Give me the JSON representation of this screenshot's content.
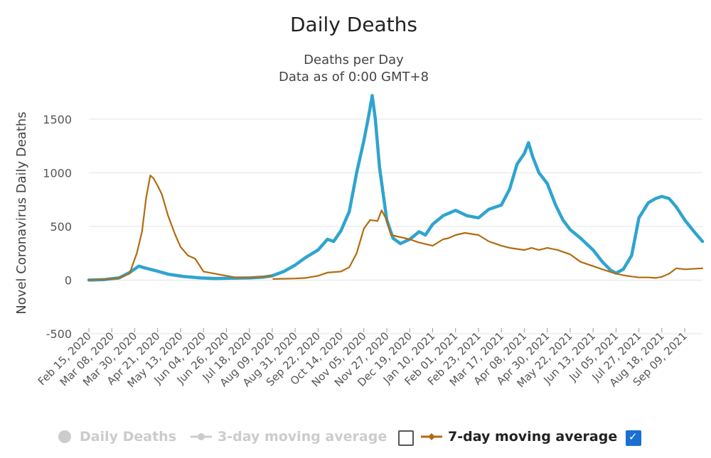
{
  "chart_data": {
    "type": "line",
    "title": "Daily Deaths",
    "subtitle_lines": [
      "Deaths per Day",
      "Data as of 0:00 GMT+8"
    ],
    "ylabel": "Novel Coronavirus Daily Deaths",
    "ylim": [
      -500,
      1750
    ],
    "yticks": [
      -500,
      0,
      500,
      1000,
      1500
    ],
    "xlim": [
      "2020-02-15",
      "2021-09-26"
    ],
    "x_tick_labels": [
      "Feb 15, 2020",
      "Mar 08, 2020",
      "Mar 30, 2020",
      "Apr 21, 2020",
      "May 13, 2020",
      "Jun 04, 2020",
      "Jun 26, 2020",
      "Jul 18, 2020",
      "Aug 09, 2020",
      "Aug 31, 2020",
      "Sep 22, 2020",
      "Oct 14, 2020",
      "Nov 05, 2020",
      "Nov 27, 2020",
      "Dec 19, 2020",
      "Jan 10, 2021",
      "Feb 01, 2021",
      "Feb 23, 2021",
      "Mar 17, 2021",
      "Apr 08, 2021",
      "Apr 30, 2021",
      "May 22, 2021",
      "Jun 13, 2021",
      "Jul 05, 2021",
      "Jul 27, 2021",
      "Aug 18, 2021",
      "Sep 09, 2021"
    ],
    "grid": true,
    "legend_position": "bottom",
    "series": [
      {
        "name": "3-day moving average",
        "color": "#2fa4cf",
        "x": [
          "2020-02-15",
          "2020-03-01",
          "2020-03-15",
          "2020-03-25",
          "2020-04-03",
          "2020-04-10",
          "2020-04-20",
          "2020-05-01",
          "2020-05-15",
          "2020-06-01",
          "2020-06-15",
          "2020-07-01",
          "2020-07-18",
          "2020-08-01",
          "2020-08-09",
          "2020-08-20",
          "2020-08-31",
          "2020-09-10",
          "2020-09-22",
          "2020-10-01",
          "2020-10-07",
          "2020-10-14",
          "2020-10-22",
          "2020-10-29",
          "2020-11-05",
          "2020-11-10",
          "2020-11-13",
          "2020-11-16",
          "2020-11-20",
          "2020-11-27",
          "2020-12-03",
          "2020-12-10",
          "2020-12-19",
          "2020-12-28",
          "2021-01-03",
          "2021-01-10",
          "2021-01-20",
          "2021-02-01",
          "2021-02-12",
          "2021-02-23",
          "2021-03-05",
          "2021-03-17",
          "2021-03-25",
          "2021-04-01",
          "2021-04-08",
          "2021-04-12",
          "2021-04-16",
          "2021-04-22",
          "2021-04-30",
          "2021-05-08",
          "2021-05-15",
          "2021-05-22",
          "2021-06-01",
          "2021-06-13",
          "2021-06-22",
          "2021-06-30",
          "2021-07-05",
          "2021-07-12",
          "2021-07-20",
          "2021-07-27",
          "2021-08-05",
          "2021-08-12",
          "2021-08-18",
          "2021-08-25",
          "2021-09-01",
          "2021-09-09",
          "2021-09-18",
          "2021-09-26"
        ],
        "values": [
          0,
          5,
          20,
          70,
          130,
          110,
          85,
          55,
          35,
          20,
          15,
          18,
          20,
          28,
          40,
          80,
          140,
          210,
          280,
          380,
          360,
          460,
          640,
          1000,
          1300,
          1550,
          1720,
          1500,
          1050,
          560,
          390,
          340,
          380,
          450,
          420,
          520,
          600,
          650,
          600,
          580,
          660,
          700,
          850,
          1080,
          1180,
          1280,
          1150,
          1000,
          900,
          700,
          560,
          470,
          390,
          280,
          170,
          90,
          65,
          100,
          230,
          580,
          720,
          760,
          780,
          760,
          680,
          560,
          450,
          360
        ]
      },
      {
        "name": "7-day moving average",
        "color": "#b36b0e",
        "x": [
          "2020-02-15",
          "2020-03-01",
          "2020-03-15",
          "2020-03-25",
          "2020-04-01",
          "2020-04-06",
          "2020-04-10",
          "2020-04-14",
          "2020-04-17",
          "2020-04-21",
          "2020-04-25",
          "2020-05-01",
          "2020-05-08",
          "2020-05-13",
          "2020-05-20",
          "2020-05-27",
          "2020-06-04",
          "2020-06-15",
          "2020-06-26",
          "2020-07-05",
          "2020-07-18",
          "2020-07-28",
          "2020-08-09",
          "null",
          "2020-08-10",
          "2020-08-31",
          "2020-09-10",
          "2020-09-22",
          "2020-10-01",
          "2020-10-14",
          "2020-10-22",
          "2020-10-29",
          "2020-11-05",
          "2020-11-11",
          "2020-11-18",
          "2020-11-22",
          "2020-11-27",
          "2020-12-01",
          "2020-12-10",
          "2020-12-19",
          "2020-12-28",
          "2021-01-10",
          "2021-01-20",
          "2021-01-25",
          "2021-02-01",
          "2021-02-10",
          "2021-02-23",
          "2021-03-05",
          "2021-03-17",
          "2021-03-25",
          "2021-04-08",
          "2021-04-15",
          "2021-04-22",
          "2021-04-30",
          "2021-05-10",
          "2021-05-22",
          "2021-06-01",
          "2021-06-13",
          "2021-06-25",
          "2021-07-05",
          "2021-07-15",
          "2021-07-27",
          "2021-08-05",
          "2021-08-12",
          "2021-08-18",
          "2021-08-25",
          "2021-09-01",
          "2021-09-09",
          "2021-09-26"
        ],
        "values": [
          0,
          5,
          20,
          60,
          250,
          450,
          770,
          975,
          950,
          880,
          800,
          600,
          420,
          310,
          230,
          200,
          80,
          60,
          40,
          25,
          20,
          30,
          40,
          null,
          10,
          15,
          20,
          40,
          70,
          80,
          120,
          250,
          480,
          560,
          550,
          650,
          560,
          420,
          400,
          380,
          350,
          320,
          380,
          390,
          420,
          440,
          420,
          360,
          320,
          300,
          280,
          300,
          280,
          300,
          280,
          240,
          170,
          130,
          90,
          60,
          40,
          25,
          25,
          20,
          30,
          60,
          110,
          100,
          110
        ]
      }
    ]
  },
  "legend": {
    "items": [
      {
        "label": "Daily Deaths",
        "enabled": false
      },
      {
        "label": "3-day moving average",
        "enabled": false
      },
      {
        "label": "7-day moving average",
        "enabled": true,
        "checked": true
      }
    ],
    "colors": {
      "dim": "#cccccc",
      "active": "#b36b0e"
    }
  }
}
